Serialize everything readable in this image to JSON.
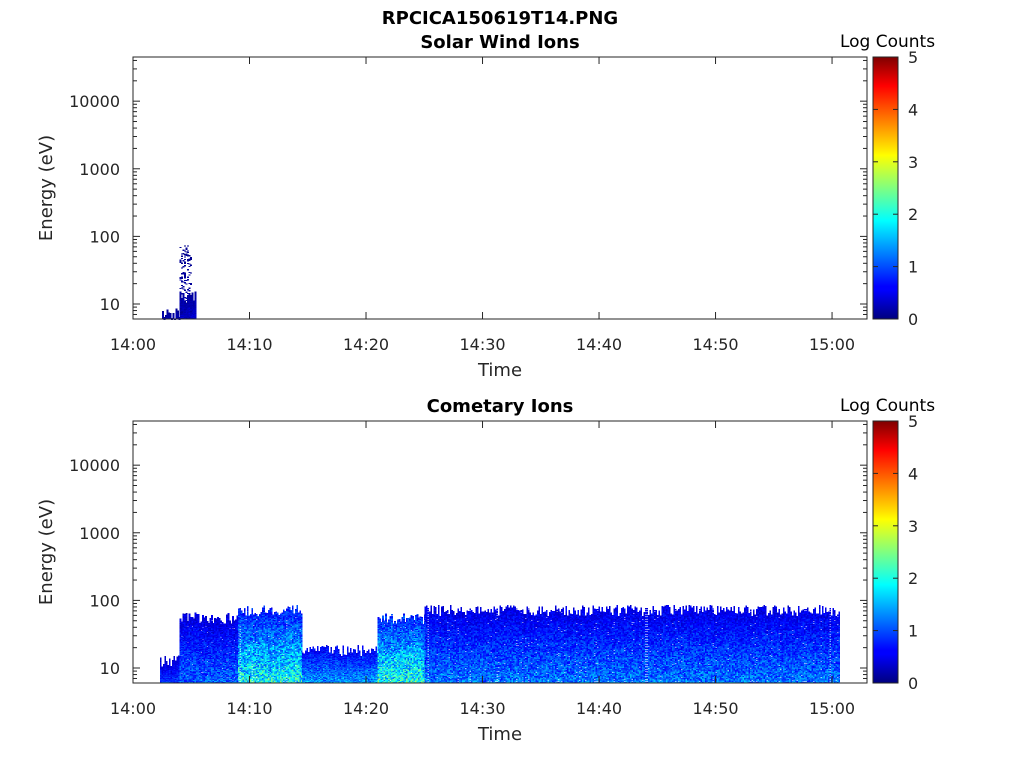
{
  "figure_title": "RPCICA150619T14.PNG",
  "chart_data": [
    {
      "type": "heatmap",
      "title": "Solar Wind Ions",
      "xlabel": "Time",
      "ylabel": "Energy (eV)",
      "x_ticks": [
        "14:00",
        "14:10",
        "14:20",
        "14:30",
        "14:40",
        "14:50",
        "15:00"
      ],
      "x_range": [
        "14:00",
        "15:03"
      ],
      "y_scale": "log",
      "y_ticks": [
        "10",
        "100",
        "1000",
        "10000"
      ],
      "y_range": [
        6,
        45000
      ],
      "colorbar": {
        "label": "Log Counts",
        "ticks": [
          "0",
          "1",
          "2",
          "3",
          "4",
          "5"
        ],
        "range": [
          0,
          5
        ],
        "colormap": "jet"
      },
      "activity": [
        {
          "start": "14:02.5",
          "end": "14:04.0",
          "energy_max": 8,
          "log_counts": 0.3
        },
        {
          "start": "14:04.0",
          "end": "14:05.3",
          "energy_max": 14,
          "log_counts": 0.4
        },
        {
          "start": "14:04.0",
          "end": "14:05.0",
          "energy_max": 75,
          "log_counts": 0.2,
          "sparse": true
        }
      ]
    },
    {
      "type": "heatmap",
      "title": "Cometary Ions",
      "xlabel": "Time",
      "ylabel": "Energy (eV)",
      "x_ticks": [
        "14:00",
        "14:10",
        "14:20",
        "14:30",
        "14:40",
        "14:50",
        "15:00"
      ],
      "x_range": [
        "14:00",
        "15:03"
      ],
      "y_scale": "log",
      "y_ticks": [
        "10",
        "100",
        "1000",
        "10000"
      ],
      "y_range": [
        6,
        45000
      ],
      "colorbar": {
        "label": "Log Counts",
        "ticks": [
          "0",
          "1",
          "2",
          "3",
          "4",
          "5"
        ],
        "range": [
          0,
          5
        ],
        "colormap": "jet"
      },
      "activity": [
        {
          "start": "14:02.3",
          "end": "14:04.0",
          "energy_max": 14,
          "log_counts": 0.9
        },
        {
          "start": "14:04.0",
          "end": "14:09.0",
          "energy_max": 60,
          "log_counts": 1.1
        },
        {
          "start": "14:09.0",
          "end": "14:14.5",
          "energy_max": 78,
          "log_counts": 1.9
        },
        {
          "start": "14:14.5",
          "end": "14:21.0",
          "energy_max": 20,
          "log_counts": 1.4
        },
        {
          "start": "14:21.0",
          "end": "14:25.0",
          "energy_max": 60,
          "log_counts": 2.0
        },
        {
          "start": "14:25.0",
          "end": "15:00.6",
          "energy_max": 78,
          "log_counts": 1.2
        }
      ]
    }
  ]
}
